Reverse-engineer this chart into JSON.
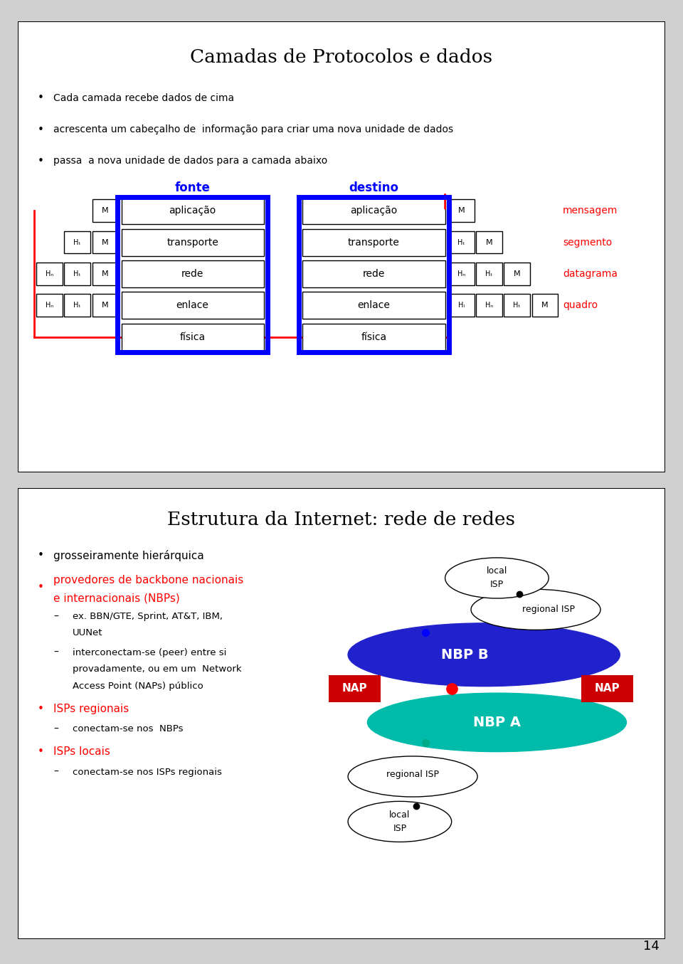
{
  "slide1_title": "Camadas de Protocolos e dados",
  "slide1_bullets": [
    "Cada camada recebe dados de cima",
    "acrescenta um cabeçalho de  informação para criar uma nova unidade de dados",
    "passa  a nova unidade de dados para a camada abaixo"
  ],
  "fonte_label": "fonte",
  "destino_label": "destino",
  "layers": [
    "aplicação",
    "transporte",
    "rede",
    "enlace",
    "física"
  ],
  "right_labels": [
    "mensagem",
    "segmento",
    "datagrama",
    "quadro"
  ],
  "slide2_title": "Estrutura da Internet: rede de redes",
  "slide2_bullet1": "grosseiramente hierárquica",
  "slide2_bullet2_line1": "provedores de backbone nacionais",
  "slide2_bullet2_line2": "e internacionais (NBPs)",
  "slide2_sub1_line1": "ex. BBN/GTE, Sprint, AT&T, IBM,",
  "slide2_sub1_line2": "UUNet",
  "slide2_sub2_line1": "interconectam-se (peer) entre si",
  "slide2_sub2_line2": "provadamente, ou em um  Network",
  "slide2_sub2_line3": "Access Point (NAPs) público",
  "slide2_bullet3": "ISPs regionais",
  "slide2_sub3": "conectam-se nos  NBPs",
  "slide2_bullet4": "ISPs locais",
  "slide2_sub4": "conectam-se nos ISPs regionais",
  "nbpb_color": "#2222CC",
  "nbpa_color": "#00BBAA",
  "nap_color": "#CC0000",
  "page_number": "14",
  "bg_color": "#FFFFFF"
}
